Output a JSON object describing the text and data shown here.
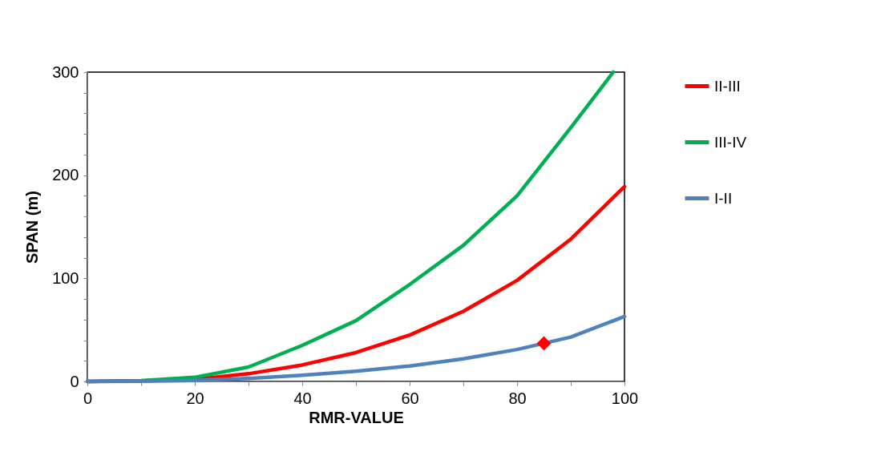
{
  "chart_data": {
    "type": "line",
    "xlabel": "RMR-VALUE",
    "ylabel": "SPAN (m)",
    "xlim": [
      0,
      100
    ],
    "xticks": [
      0,
      {
        "value": 10,
        "label": null
      },
      20,
      {
        "value": 30,
        "label": null
      },
      40,
      {
        "value": 50,
        "label": null
      },
      60,
      {
        "value": 70,
        "label": null
      },
      80,
      {
        "value": 90,
        "label": null
      },
      100
    ],
    "ylim": [
      0,
      300
    ],
    "yticks": [
      0,
      {
        "value": 20,
        "label": null
      },
      {
        "value": 40,
        "label": null
      },
      {
        "value": 60,
        "label": null
      },
      {
        "value": 80,
        "label": null
      },
      100,
      {
        "value": 120,
        "label": null
      },
      {
        "value": 140,
        "label": null
      },
      {
        "value": 160,
        "label": null
      },
      {
        "value": 180,
        "label": null
      },
      200,
      {
        "value": 220,
        "label": null
      },
      {
        "value": 240,
        "label": null
      },
      {
        "value": 260,
        "label": null
      },
      {
        "value": 280,
        "label": null
      },
      300
    ],
    "grid": false,
    "legend": "right",
    "marker": "none",
    "line_style": "solid",
    "series": [
      {
        "name": "II-III",
        "color": "#ff0000",
        "x": [
          0,
          10,
          20,
          30,
          40,
          50,
          60,
          70,
          80,
          90,
          100
        ],
        "values": [
          0,
          0.5,
          2,
          7.5,
          16,
          28,
          45,
          68,
          98,
          138,
          189
        ]
      },
      {
        "name": "III-IV",
        "color": "#00b050",
        "x": [
          0,
          10,
          20,
          30,
          40,
          50,
          60,
          70,
          80,
          90,
          97.9
        ],
        "values": [
          0,
          0.8,
          4,
          14,
          35,
          59,
          94,
          132,
          180,
          246,
          300
        ]
      },
      {
        "name": "I-II",
        "color": "#4f81bd",
        "x": [
          0,
          10,
          20,
          30,
          40,
          50,
          60,
          70,
          80,
          90,
          100
        ],
        "values": [
          0,
          0.2,
          1,
          3,
          6,
          10,
          15,
          22,
          31,
          43,
          63
        ]
      },
      {
        "type": "scatter",
        "color": "#ff0000",
        "marker": "diamond",
        "x": [
          85
        ],
        "values": [
          37
        ]
      }
    ]
  }
}
